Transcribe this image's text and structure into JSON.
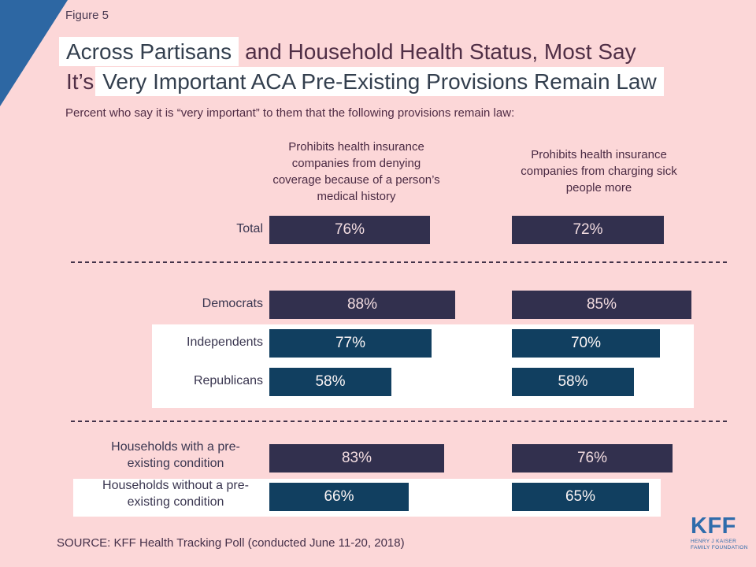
{
  "figure_label": "Figure 5",
  "title": {
    "line1_highlight": "Across Partisans",
    "line1_rest": "and Household Health Status, Most Say",
    "line2_prefix": "It’s",
    "line2_highlight": "Very Important ACA Pre-Existing Provisions Remain Law"
  },
  "subtitle": "Percent who say it is “very important” to them that the following provisions remain law:",
  "chart_data": {
    "type": "bar",
    "orientation": "horizontal",
    "title": "Across Partisans and Household Health Status, Most Say It’s Very Important ACA Pre-Existing Provisions Remain Law",
    "subtitle": "Percent who say it is “very important” to them that the following provisions remain law:",
    "unit": "%",
    "xlim": [
      0,
      100
    ],
    "grid": false,
    "legend": "none",
    "columns": [
      {
        "header": "Prohibits health insurance\ncompanies from denying\ncoverage because of a person’s\nmedical history"
      },
      {
        "header": "Prohibits health insurance\ncompanies from charging sick\npeople more"
      }
    ],
    "rows": [
      {
        "label": "Total",
        "group": "total",
        "palette": "navy",
        "values": [
          76,
          72
        ],
        "display": [
          "76%",
          "72%"
        ]
      },
      {
        "label": "Democrats",
        "group": "party",
        "palette": "navy",
        "values": [
          88,
          85
        ],
        "display": [
          "88%",
          "85%"
        ]
      },
      {
        "label": "Independents",
        "group": "party",
        "palette": "teal",
        "values": [
          77,
          70
        ],
        "display": [
          "77%",
          "70%"
        ]
      },
      {
        "label": "Republicans",
        "group": "party",
        "palette": "teal",
        "values": [
          58,
          58
        ],
        "display": [
          "58%",
          "58%"
        ]
      },
      {
        "label": "Households with a pre-\nexisting condition",
        "group": "household",
        "palette": "navy",
        "values": [
          83,
          76
        ],
        "display": [
          "83%",
          "76%"
        ]
      },
      {
        "label": "Households without a pre-\nexisting condition",
        "group": "household",
        "palette": "teal",
        "values": [
          66,
          65
        ],
        "display": [
          "66%",
          "65%"
        ]
      }
    ]
  },
  "colors": {
    "background_pink": "#fcd7d8",
    "triangle_blue": "#2d67a3",
    "navy_bar": "#32304e",
    "teal_bar": "#113f60",
    "navy_text": "#f2dce0",
    "teal_text": "#fdf6f6",
    "highlight_white": "#ffffff",
    "logo_blue": "#2f6cab"
  },
  "source": "SOURCE: KFF Health Tracking Poll (conducted June 11-20, 2018)",
  "logo": {
    "name": "KFF",
    "tagline_line1": "HENRY J KAISER",
    "tagline_line2": "FAMILY FOUNDATION"
  }
}
